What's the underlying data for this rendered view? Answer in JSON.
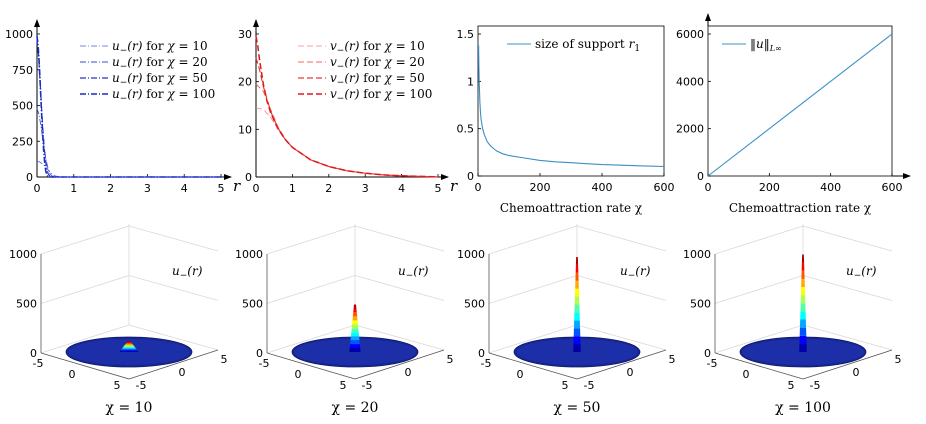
{
  "chart_data": [
    {
      "id": "p1",
      "type": "line",
      "xlim": [
        0,
        5
      ],
      "ylim": [
        0,
        1000
      ],
      "xticks": [
        "0",
        "1",
        "2",
        "3",
        "4",
        "5"
      ],
      "yticks": [
        "0",
        "250",
        "500",
        "750",
        "1000"
      ],
      "xlabel": "r",
      "legend": [
        {
          "fn": "u",
          "sub": "−",
          "arg": "(r)",
          "mid": "for",
          "chi": "χ",
          "eq": "= 10"
        },
        {
          "fn": "u",
          "sub": "−",
          "arg": "(r)",
          "mid": "for",
          "chi": "χ",
          "eq": "= 20"
        },
        {
          "fn": "u",
          "sub": "−",
          "arg": "(r)",
          "mid": "for",
          "chi": "χ",
          "eq": "= 50"
        },
        {
          "fn": "u",
          "sub": "−",
          "arg": "(r)",
          "mid": "for",
          "chi": "χ",
          "eq": "= 100"
        }
      ],
      "series": [
        {
          "name": "χ = 10",
          "color": "#4f5fd8",
          "dash": "6 2 1 2",
          "width": 0.8,
          "x": [
            0,
            0.05,
            0.1,
            0.15,
            0.2,
            0.25,
            0.3,
            0.35,
            0.4,
            0.45,
            0.5,
            0.6,
            0.7,
            1,
            5
          ],
          "y": [
            110,
            108,
            100,
            90,
            78,
            64,
            50,
            36,
            24,
            14,
            7,
            2,
            0,
            0,
            0
          ]
        },
        {
          "name": "χ = 20",
          "color": "#3d4ed6",
          "dash": "6 2 1 2",
          "width": 0.9,
          "x": [
            0,
            0.05,
            0.1,
            0.15,
            0.2,
            0.25,
            0.3,
            0.35,
            0.4,
            0.5,
            1,
            5
          ],
          "y": [
            480,
            440,
            370,
            280,
            190,
            115,
            60,
            25,
            8,
            0,
            0,
            0
          ]
        },
        {
          "name": "χ = 50",
          "color": "#2233cc",
          "dash": "6 2 1 2",
          "width": 1.2,
          "x": [
            0,
            0.04,
            0.08,
            0.12,
            0.16,
            0.2,
            0.25,
            0.3,
            0.35,
            0.4,
            1,
            5
          ],
          "y": [
            960,
            860,
            690,
            500,
            330,
            190,
            80,
            25,
            5,
            0,
            0,
            0
          ]
        },
        {
          "name": "χ = 100",
          "color": "#1a2cc8",
          "dash": "6 2 1 2",
          "width": 1.6,
          "x": [
            0,
            0.03,
            0.06,
            0.09,
            0.12,
            0.15,
            0.18,
            0.21,
            0.24,
            0.28,
            0.32,
            1,
            5
          ],
          "y": [
            985,
            920,
            800,
            640,
            470,
            320,
            190,
            100,
            40,
            10,
            0,
            0,
            0
          ]
        }
      ]
    },
    {
      "id": "p2",
      "type": "line",
      "xlim": [
        0,
        5
      ],
      "ylim": [
        0,
        30
      ],
      "xticks": [
        "0",
        "1",
        "2",
        "3",
        "4",
        "5"
      ],
      "yticks": [
        "0",
        "10",
        "20",
        "30"
      ],
      "xlabel": "r",
      "legend": [
        {
          "fn": "v",
          "sub": "−",
          "arg": "(r)",
          "mid": "for",
          "chi": "χ",
          "eq": "= 10"
        },
        {
          "fn": "v",
          "sub": "−",
          "arg": "(r)",
          "mid": "for",
          "chi": "χ",
          "eq": "= 20"
        },
        {
          "fn": "v",
          "sub": "−",
          "arg": "(r)",
          "mid": "for",
          "chi": "χ",
          "eq": "= 50"
        },
        {
          "fn": "v",
          "sub": "−",
          "arg": "(r)",
          "mid": "for",
          "chi": "χ",
          "eq": "= 100"
        }
      ],
      "series": [
        {
          "name": "χ = 10",
          "color": "#f08a8a",
          "dash": "6 3",
          "width": 0.8,
          "x": [
            0,
            0.2,
            0.4,
            0.6,
            0.8,
            1,
            1.5,
            2,
            2.5,
            3,
            3.5,
            4,
            4.5,
            5
          ],
          "y": [
            14.5,
            14.2,
            12.5,
            10.2,
            8,
            6.2,
            3.6,
            2.2,
            1.3,
            0.8,
            0.45,
            0.25,
            0.12,
            0.05
          ]
        },
        {
          "name": "χ = 20",
          "color": "#ec6a6a",
          "dash": "6 3",
          "width": 1.0,
          "x": [
            0,
            0.2,
            0.4,
            0.6,
            0.8,
            1,
            1.5,
            2,
            2.5,
            3,
            3.5,
            4,
            4.5,
            5
          ],
          "y": [
            19.5,
            18,
            14.2,
            10.6,
            8,
            6.2,
            3.6,
            2.2,
            1.3,
            0.8,
            0.45,
            0.25,
            0.12,
            0.05
          ]
        },
        {
          "name": "χ = 50",
          "color": "#e43a3a",
          "dash": "6 3",
          "width": 1.2,
          "x": [
            0,
            0.1,
            0.2,
            0.4,
            0.6,
            0.8,
            1,
            1.5,
            2,
            2.5,
            3,
            3.5,
            4,
            4.5,
            5
          ],
          "y": [
            25,
            22.5,
            19,
            13.8,
            10.3,
            7.9,
            6.2,
            3.6,
            2.2,
            1.3,
            0.8,
            0.45,
            0.25,
            0.12,
            0.05
          ]
        },
        {
          "name": "χ = 100",
          "color": "#e01818",
          "dash": "6 3",
          "width": 1.5,
          "x": [
            0,
            0.05,
            0.1,
            0.2,
            0.3,
            0.4,
            0.6,
            0.8,
            1,
            1.5,
            2,
            2.5,
            3,
            3.5,
            4,
            4.5,
            5
          ],
          "y": [
            29.5,
            27.5,
            24.5,
            19.5,
            16,
            13.5,
            10.2,
            7.9,
            6.2,
            3.6,
            2.2,
            1.3,
            0.8,
            0.45,
            0.25,
            0.12,
            0.05
          ]
        }
      ]
    },
    {
      "id": "p3",
      "type": "line",
      "xlim": [
        0,
        600
      ],
      "ylim": [
        0,
        1.5
      ],
      "xticks": [
        "0",
        "200",
        "400",
        "600"
      ],
      "yticks": [
        "0",
        "0.5",
        "1",
        "1.5"
      ],
      "xlabel": "Chemoattraction rate χ",
      "legend": [
        {
          "text": "size of support",
          "var": "r",
          "sub": "1"
        }
      ],
      "series": [
        {
          "name": "size of support r1",
          "color": "#3b8fc6",
          "width": 1.1,
          "x": [
            2,
            3,
            4,
            5,
            6,
            8,
            10,
            15,
            20,
            30,
            40,
            50,
            60,
            80,
            100,
            150,
            200,
            250,
            300,
            350,
            400,
            450,
            500,
            550,
            600
          ],
          "y": [
            1.38,
            1.15,
            1.0,
            0.87,
            0.78,
            0.67,
            0.6,
            0.5,
            0.44,
            0.36,
            0.32,
            0.29,
            0.265,
            0.235,
            0.215,
            0.19,
            0.165,
            0.15,
            0.14,
            0.13,
            0.12,
            0.115,
            0.11,
            0.105,
            0.1
          ]
        }
      ]
    },
    {
      "id": "p4",
      "type": "line",
      "xlim": [
        0,
        600
      ],
      "ylim": [
        0,
        6000
      ],
      "xticks": [
        "0",
        "200",
        "400",
        "600"
      ],
      "yticks": [
        "0",
        "2000",
        "4000",
        "6000"
      ],
      "xlabel": "Chemoattraction rate χ",
      "legend": [
        {
          "text": "‖u‖",
          "sub": "L∞"
        }
      ],
      "series": [
        {
          "name": "||u|| L∞",
          "color": "#3b8fc6",
          "width": 1.1,
          "x": [
            0,
            600
          ],
          "y": [
            0,
            6000
          ]
        }
      ]
    },
    {
      "id": "s1",
      "type": "surface",
      "chi": 10,
      "peak": 110,
      "zlim": [
        0,
        1000
      ],
      "zticks": [
        "0",
        "500",
        "1000"
      ],
      "axticks": [
        "-5",
        "0",
        "5"
      ],
      "label_fn": "u",
      "label_sub": "−",
      "label_arg": "(r)",
      "caption": "χ = 10"
    },
    {
      "id": "s2",
      "type": "surface",
      "chi": 20,
      "peak": 480,
      "zlim": [
        0,
        1000
      ],
      "zticks": [
        "0",
        "500",
        "1000"
      ],
      "axticks": [
        "-5",
        "0",
        "5"
      ],
      "label_fn": "u",
      "label_sub": "−",
      "label_arg": "(r)",
      "caption": "χ = 20"
    },
    {
      "id": "s3",
      "type": "surface",
      "chi": 50,
      "peak": 960,
      "zlim": [
        0,
        1000
      ],
      "zticks": [
        "0",
        "500",
        "1000"
      ],
      "axticks": [
        "-5",
        "0",
        "5"
      ],
      "label_fn": "u",
      "label_sub": "−",
      "label_arg": "(r)",
      "caption": "χ = 50"
    },
    {
      "id": "s4",
      "type": "surface",
      "chi": 100,
      "peak": 985,
      "zlim": [
        0,
        1000
      ],
      "zticks": [
        "0",
        "500",
        "1000"
      ],
      "axticks": [
        "-5",
        "0",
        "5"
      ],
      "label_fn": "u",
      "label_sub": "−",
      "label_arg": "(r)",
      "caption": "χ = 100"
    }
  ]
}
